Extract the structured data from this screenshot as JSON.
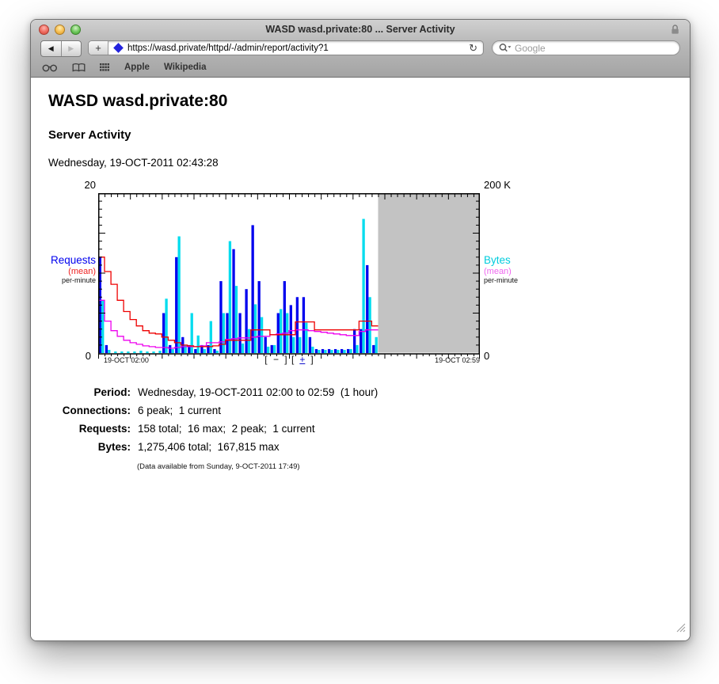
{
  "window": {
    "title": "WASD wasd.private:80 ... Server Activity"
  },
  "toolbar": {
    "back_label": "◀",
    "forward_label": "▶",
    "new_tab_label": "+",
    "url": "https://wasd.private/httpd/-/admin/report/activity?1",
    "reload_label": "↻",
    "search_placeholder": "Google"
  },
  "bookmarks": {
    "items": [
      "Apple",
      "Wikipedia"
    ]
  },
  "page": {
    "heading": "WASD wasd.private:80",
    "subheading": "Server Activity",
    "datetime": "Wednesday, 19-OCT-2011 02:43:28"
  },
  "chart_data": {
    "type": "bar",
    "title": "Server activity per-minute, 19-OCT-2011 02:00 to 02:59",
    "minutes_total": 60,
    "data_minutes": 44,
    "x_start_label": "19-OCT 02:00",
    "x_end_label": "19-OCT 02:59",
    "left_axis": {
      "label": "Requests",
      "mean_label": "(mean)",
      "unit_label": "per-minute",
      "max": 20,
      "max_label": "20",
      "min_label": "0"
    },
    "right_axis": {
      "label": "Bytes",
      "mean_label": "(mean)",
      "unit_label": "per-minute",
      "max_k": 200,
      "max_label": "200 K",
      "min_label": "0"
    },
    "series": [
      {
        "name": "requests",
        "kind": "bar",
        "color": "#0000ee",
        "values": [
          12,
          1,
          0,
          0,
          0,
          0,
          0,
          0,
          0,
          0,
          5,
          1,
          12,
          2,
          1,
          0.5,
          1,
          1,
          0.5,
          9,
          5,
          13,
          5,
          8,
          16,
          9,
          2,
          1,
          5,
          9,
          6,
          7,
          7,
          2,
          0.5,
          0.5,
          0.5,
          0.5,
          0.5,
          0.5,
          3,
          3,
          11,
          1
        ]
      },
      {
        "name": "bytes_kb",
        "kind": "bar",
        "color": "#00dcee",
        "values": [
          66,
          4,
          2,
          2,
          2,
          2,
          3,
          2,
          2,
          3,
          68,
          5,
          146,
          10,
          50,
          22,
          5,
          40,
          3,
          50,
          140,
          84,
          12,
          30,
          61,
          45,
          8,
          10,
          55,
          50,
          20,
          20,
          38,
          8,
          4,
          4,
          4,
          4,
          4,
          5,
          10,
          167.8,
          70,
          20
        ]
      },
      {
        "name": "requests_mean",
        "kind": "line",
        "color": "#ee0000",
        "values": [
          12,
          10.2,
          8.6,
          6.6,
          5.2,
          4.2,
          3.4,
          2.8,
          2.5,
          2.4,
          2.0,
          1.6,
          1.3,
          1.0,
          0.9,
          0.8,
          0.8,
          0.8,
          0.9,
          1.1,
          1.6,
          1.6,
          1.6,
          1.6,
          2.9,
          2.9,
          2.9,
          2.3,
          2.3,
          2.3,
          2.3,
          3.9,
          3.9,
          3.9,
          2.9,
          2.9,
          2.9,
          2.9,
          2.9,
          2.9,
          2.9,
          4.0,
          4.0,
          3.4
        ]
      },
      {
        "name": "bytes_mean_kb",
        "kind": "line",
        "color": "#ee00ee",
        "values": [
          66,
          40,
          28,
          21,
          16,
          13,
          11,
          9,
          8,
          7,
          7,
          6,
          7,
          8,
          8,
          8,
          9,
          13,
          13,
          14,
          17,
          18,
          19,
          19,
          20,
          21,
          21,
          23,
          24,
          25,
          28,
          29,
          29,
          28,
          27,
          26,
          25,
          24,
          23,
          22,
          22,
          27,
          29,
          29
        ]
      }
    ],
    "future_region_color": "#c3c3c3",
    "legend_position": "sides",
    "grid": false,
    "zoom_controls": {
      "minus_group": "[ − ]",
      "plus_open": "[",
      "plus": "+",
      "plus_close": "]"
    }
  },
  "stats": {
    "rows": [
      {
        "label": "Period:",
        "value": "Wednesday, 19-OCT-2011 02:00 to 02:59  (1 hour)"
      },
      {
        "label": "Connections:",
        "value": "6 peak;  1 current"
      },
      {
        "label": "Requests:",
        "value": "158 total;  16 max;  2 peak;  1 current"
      },
      {
        "label": "Bytes:",
        "value": "1,275,406 total;  167,815 max"
      }
    ],
    "note": "(Data available from Sunday, 9-OCT-2011 17:49)"
  }
}
